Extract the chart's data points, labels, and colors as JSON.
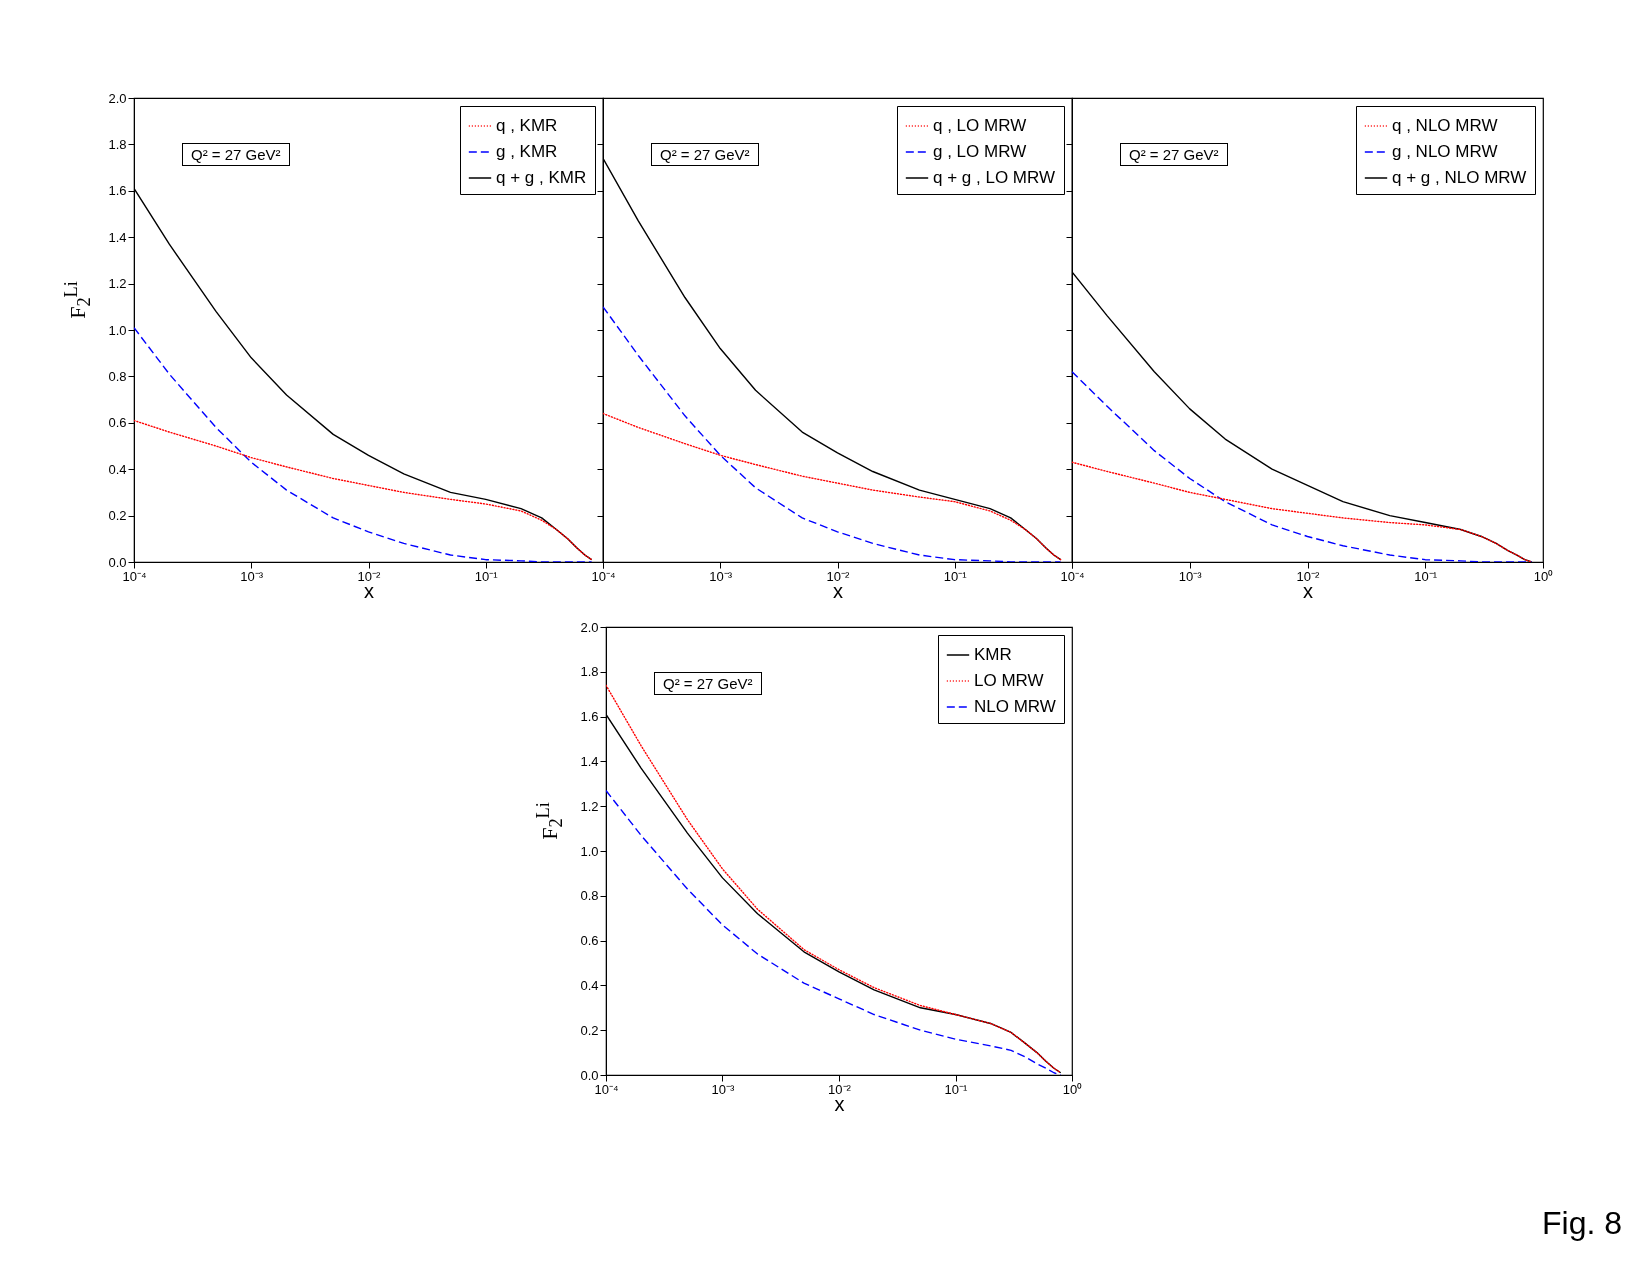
{
  "chart_data": [
    {
      "type": "line",
      "xlabel": "x",
      "ylabel": "F$_{2}$$^{Li}$",
      "log": "x",
      "legend": "top right",
      "xlim": [
        0.0001,
        1
      ],
      "ylim": [
        0,
        2
      ],
      "xticks": [
        {
          "value": 0.0001,
          "label": "10⁻⁴"
        },
        {
          "value": 0.001,
          "label": "10⁻³"
        },
        {
          "value": 0.01,
          "label": "10⁻²"
        },
        {
          "value": 0.1,
          "label": "10⁻¹"
        },
        {
          "value": 1,
          "label": null
        }
      ],
      "yticks": [
        {
          "value": 0,
          "label": "0.0"
        },
        0.2,
        0.4,
        0.6,
        0.8,
        {
          "value": 1,
          "label": "1.0"
        },
        1.2,
        1.4,
        1.6,
        1.8,
        {
          "value": 2,
          "label": "2.0"
        }
      ],
      "x": [
        0.0001,
        0.0002,
        0.0005,
        0.001,
        0.002,
        0.005,
        0.01,
        0.02,
        0.05,
        0.1,
        0.2,
        0.3,
        0.4,
        0.5,
        0.6,
        0.7,
        0.8
      ],
      "annotations": [
        "Q² = 27 GeV²"
      ],
      "series": [
        {
          "name": "q , KMR",
          "color": "#ff0000",
          "line_style": "dotted",
          "values": [
            0.61,
            0.56,
            0.5,
            0.45,
            0.41,
            0.36,
            0.33,
            0.3,
            0.27,
            0.25,
            0.22,
            0.18,
            0.14,
            0.1,
            0.06,
            0.03,
            0.01
          ]
        },
        {
          "name": "g , KMR",
          "color": "#0000ff",
          "line_style": "dashed",
          "values": [
            1.01,
            0.81,
            0.58,
            0.43,
            0.31,
            0.19,
            0.13,
            0.08,
            0.03,
            0.01,
            0.005,
            0,
            0,
            0,
            0,
            0,
            0
          ]
        },
        {
          "name": "q + g , KMR",
          "color": "#000000",
          "line_style": "solid",
          "values": [
            1.61,
            1.37,
            1.08,
            0.88,
            0.72,
            0.55,
            0.46,
            0.38,
            0.3,
            0.27,
            0.23,
            0.19,
            0.14,
            0.1,
            0.06,
            0.03,
            0.01
          ]
        }
      ]
    },
    {
      "type": "line",
      "xlabel": "x",
      "log": "x",
      "legend": "top right",
      "xlim": [
        0.0001,
        1
      ],
      "ylim": [
        0,
        2
      ],
      "tick_labels": "x",
      "xticks": [
        {
          "value": 0.0001,
          "label": "10⁻⁴"
        },
        {
          "value": 0.001,
          "label": "10⁻³"
        },
        {
          "value": 0.01,
          "label": "10⁻²"
        },
        {
          "value": 0.1,
          "label": "10⁻¹"
        },
        {
          "value": 1,
          "label": null
        }
      ],
      "yticks": [
        0,
        0.2,
        0.4,
        0.6,
        0.8,
        1,
        1.2,
        1.4,
        1.6,
        1.8,
        2
      ],
      "x": [
        0.0001,
        0.0002,
        0.0005,
        0.001,
        0.002,
        0.005,
        0.01,
        0.02,
        0.05,
        0.1,
        0.2,
        0.3,
        0.4,
        0.5,
        0.6,
        0.7,
        0.8
      ],
      "annotations": [
        "Q² = 27 GeV²"
      ],
      "series": [
        {
          "name": "q , LO MRW",
          "color": "#ff0000",
          "line_style": "dotted",
          "values": [
            0.64,
            0.58,
            0.51,
            0.46,
            0.42,
            0.37,
            0.34,
            0.31,
            0.28,
            0.26,
            0.22,
            0.18,
            0.14,
            0.1,
            0.06,
            0.03,
            0.01
          ]
        },
        {
          "name": "g , LO MRW",
          "color": "#0000ff",
          "line_style": "dashed",
          "values": [
            1.1,
            0.89,
            0.63,
            0.46,
            0.32,
            0.19,
            0.13,
            0.08,
            0.03,
            0.01,
            0.005,
            0,
            0,
            0,
            0,
            0,
            0
          ]
        },
        {
          "name": "q + g , LO MRW",
          "color": "#000000",
          "line_style": "solid",
          "values": [
            1.74,
            1.47,
            1.14,
            0.92,
            0.74,
            0.56,
            0.47,
            0.39,
            0.31,
            0.27,
            0.23,
            0.19,
            0.14,
            0.1,
            0.06,
            0.03,
            0.01
          ]
        }
      ]
    },
    {
      "type": "line",
      "xlabel": "x",
      "log": "x",
      "legend": "top right",
      "xlim": [
        0.0001,
        1
      ],
      "ylim": [
        0,
        2
      ],
      "tick_labels": "x",
      "xticks": [
        {
          "value": 0.0001,
          "label": "10⁻⁴"
        },
        {
          "value": 0.001,
          "label": "10⁻³"
        },
        {
          "value": 0.01,
          "label": "10⁻²"
        },
        {
          "value": 0.1,
          "label": "10⁻¹"
        },
        {
          "value": 1,
          "label": "10⁰"
        }
      ],
      "yticks": [
        0,
        0.2,
        0.4,
        0.6,
        0.8,
        1,
        1.2,
        1.4,
        1.6,
        1.8,
        2
      ],
      "x": [
        0.0001,
        0.0002,
        0.0005,
        0.001,
        0.002,
        0.005,
        0.01,
        0.02,
        0.05,
        0.1,
        0.2,
        0.3,
        0.4,
        0.5,
        0.6,
        0.7,
        0.8
      ],
      "annotations": [
        "Q² = 27 GeV²"
      ],
      "series": [
        {
          "name": "q , NLO MRW",
          "color": "#ff0000",
          "line_style": "dotted",
          "values": [
            0.43,
            0.39,
            0.34,
            0.3,
            0.27,
            0.23,
            0.21,
            0.19,
            0.17,
            0.16,
            0.14,
            0.11,
            0.08,
            0.05,
            0.03,
            0.01,
            0
          ]
        },
        {
          "name": "g , NLO MRW",
          "color": "#0000ff",
          "line_style": "dashed",
          "values": [
            0.82,
            0.67,
            0.48,
            0.36,
            0.26,
            0.16,
            0.11,
            0.07,
            0.03,
            0.01,
            0.005,
            0,
            0,
            0,
            0,
            0,
            0
          ]
        },
        {
          "name": "q + g , NLO MRW",
          "color": "#000000",
          "line_style": "solid",
          "values": [
            1.25,
            1.06,
            0.82,
            0.66,
            0.53,
            0.4,
            0.33,
            0.26,
            0.2,
            0.17,
            0.14,
            0.11,
            0.08,
            0.05,
            0.03,
            0.01,
            0
          ]
        }
      ]
    },
    {
      "type": "line",
      "xlabel": "x",
      "ylabel": "F$_{2}$$^{Li}$",
      "log": "x",
      "legend": "top right",
      "xlim": [
        0.0001,
        1
      ],
      "ylim": [
        0,
        2
      ],
      "xticks": [
        {
          "value": 0.0001,
          "label": "10⁻⁴"
        },
        {
          "value": 0.001,
          "label": "10⁻³"
        },
        {
          "value": 0.01,
          "label": "10⁻²"
        },
        {
          "value": 0.1,
          "label": "10⁻¹"
        },
        {
          "value": 1,
          "label": "10⁰"
        }
      ],
      "yticks": [
        {
          "value": 0,
          "label": "0.0"
        },
        0.2,
        0.4,
        0.6,
        0.8,
        {
          "value": 1,
          "label": "1.0"
        },
        1.2,
        1.4,
        1.6,
        1.8,
        {
          "value": 2,
          "label": "2.0"
        }
      ],
      "x": [
        0.0001,
        0.0002,
        0.0005,
        0.001,
        0.002,
        0.005,
        0.01,
        0.02,
        0.05,
        0.1,
        0.2,
        0.3,
        0.4,
        0.5,
        0.6,
        0.7,
        0.8
      ],
      "annotations": [
        "Q² = 27 GeV²",
        "Fig. 8"
      ],
      "series": [
        {
          "name": "KMR",
          "color": "#000000",
          "line_style": "solid",
          "values": [
            1.61,
            1.37,
            1.08,
            0.88,
            0.72,
            0.55,
            0.46,
            0.38,
            0.3,
            0.27,
            0.23,
            0.19,
            0.14,
            0.1,
            0.06,
            0.03,
            0.01
          ]
        },
        {
          "name": "LO MRW",
          "color": "#ff0000",
          "line_style": "dotted",
          "values": [
            1.74,
            1.47,
            1.14,
            0.92,
            0.74,
            0.56,
            0.47,
            0.39,
            0.31,
            0.27,
            0.23,
            0.19,
            0.14,
            0.1,
            0.06,
            0.03,
            0.01
          ]
        },
        {
          "name": "NLO MRW",
          "color": "#0000ff",
          "line_style": "dashed",
          "values": [
            1.27,
            1.07,
            0.83,
            0.67,
            0.54,
            0.41,
            0.34,
            0.27,
            0.2,
            0.16,
            0.13,
            0.11,
            0.08,
            0.05,
            0.03,
            0.01,
            0
          ]
        }
      ]
    }
  ]
}
